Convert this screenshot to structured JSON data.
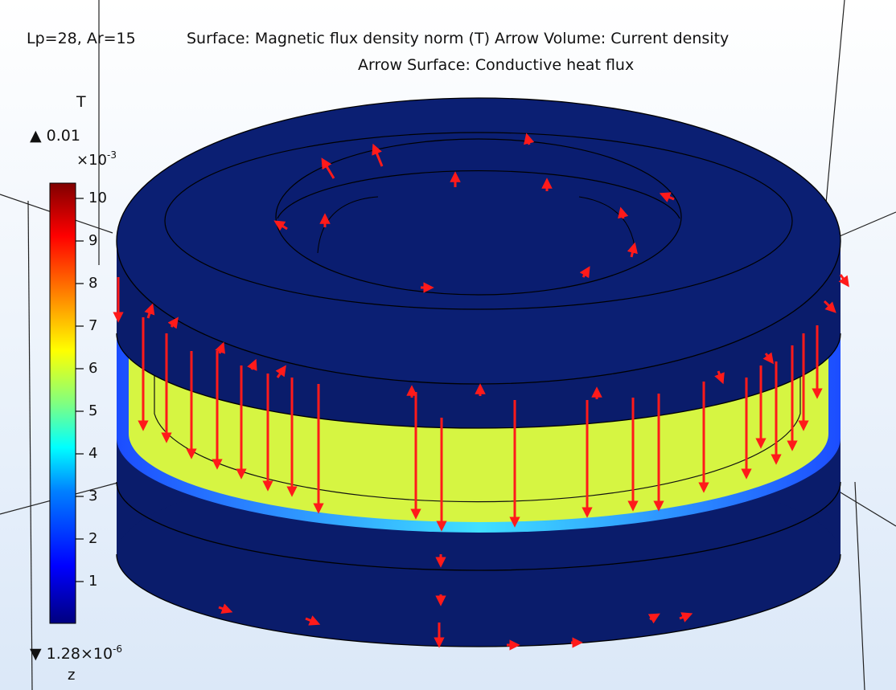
{
  "header": {
    "param_label": "Lp=28, Ar=15",
    "title_line1": "Surface: Magnetic flux density norm (T)  Arrow Volume: Current density",
    "title_line2": "Arrow Surface: Conductive heat flux"
  },
  "legend": {
    "unit": "T",
    "max_label": "▲ 0.01",
    "exponent_base": "×10",
    "exponent_power": "-3",
    "min_base": "▼ 1.28×10",
    "min_power": "-6",
    "ticks": [
      "10",
      "9",
      "8",
      "7",
      "6",
      "5",
      "4",
      "3",
      "2",
      "1"
    ],
    "tick_values": [
      10,
      9,
      8,
      7,
      6,
      5,
      4,
      3,
      2,
      1
    ],
    "colormap": [
      "#00007f",
      "#0000ff",
      "#0080ff",
      "#00ffff",
      "#80ff80",
      "#ffff00",
      "#ff8000",
      "#ff0000",
      "#800000"
    ]
  },
  "axis": {
    "z_label": "z"
  },
  "colors": {
    "ring": "#0a1c6b",
    "ring_dark": "#061354",
    "inner_band": "#d6f542",
    "arrow": "#ff1a1a",
    "background": "#e8f1fb"
  }
}
